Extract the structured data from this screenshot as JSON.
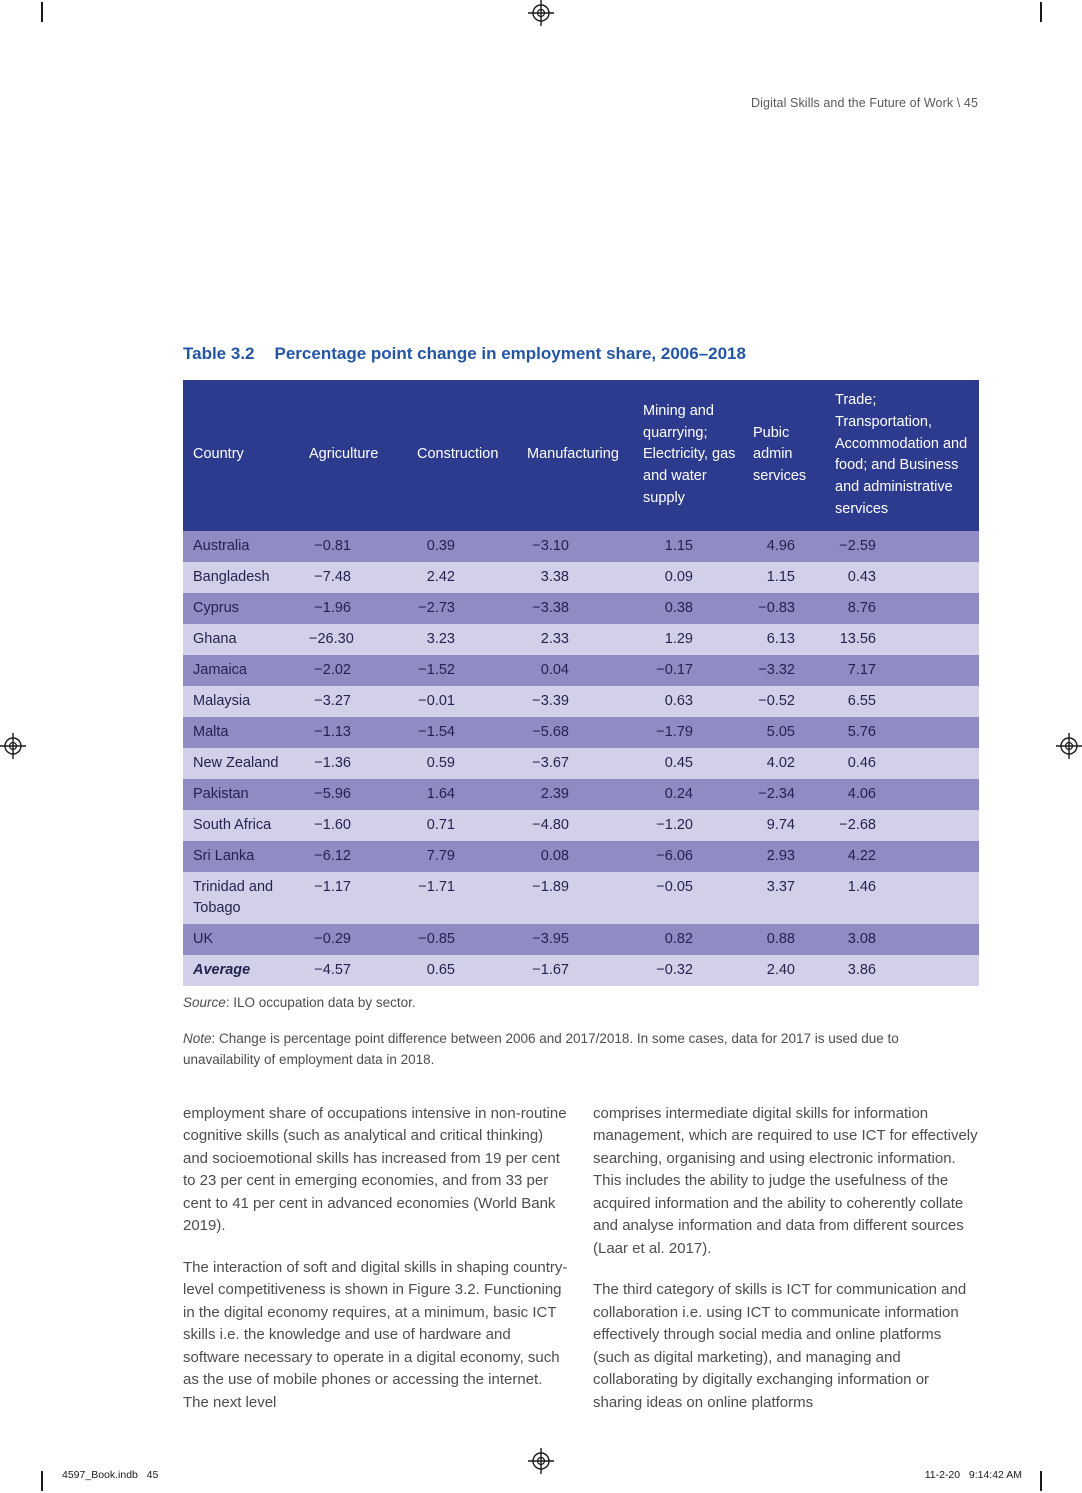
{
  "page": {
    "running_header": "Digital Skills and the Future of Work \\ 45",
    "footer_left": "4597_Book.indb   45",
    "footer_right": "11-2-20   9:14:42 AM"
  },
  "colors": {
    "title_blue": "#2456a4",
    "header_row_bg": "#2d3b8e",
    "row_dark": "#918bc4",
    "row_light": "#d2d0e8",
    "table_text": "#23234f"
  },
  "table": {
    "label": "Table 3.2",
    "title": "Percentage point change in employment share, 2006–2018",
    "columns": [
      "Country",
      "Agriculture",
      "Construction",
      "Manufacturing",
      "Mining and quarrying; Electricity, gas and water supply",
      "Pubic admin services",
      "Trade; Transportation, Accommodation and food; and Business and administrative services"
    ],
    "rows": [
      {
        "country": "Australia",
        "values": [
          "−0.81",
          "0.39",
          "−3.10",
          "1.15",
          "4.96",
          "−2.59"
        ]
      },
      {
        "country": "Bangladesh",
        "values": [
          "−7.48",
          "2.42",
          "3.38",
          "0.09",
          "1.15",
          "0.43"
        ]
      },
      {
        "country": "Cyprus",
        "values": [
          "−1.96",
          "−2.73",
          "−3.38",
          "0.38",
          "−0.83",
          "8.76"
        ]
      },
      {
        "country": "Ghana",
        "values": [
          "−26.30",
          "3.23",
          "2.33",
          "1.29",
          "6.13",
          "13.56"
        ]
      },
      {
        "country": "Jamaica",
        "values": [
          "−2.02",
          "−1.52",
          "0.04",
          "−0.17",
          "−3.32",
          "7.17"
        ]
      },
      {
        "country": "Malaysia",
        "values": [
          "−3.27",
          "−0.01",
          "−3.39",
          "0.63",
          "−0.52",
          "6.55"
        ]
      },
      {
        "country": "Malta",
        "values": [
          "−1.13",
          "−1.54",
          "−5.68",
          "−1.79",
          "5.05",
          "5.76"
        ]
      },
      {
        "country": "New Zealand",
        "values": [
          "−1.36",
          "0.59",
          "−3.67",
          "0.45",
          "4.02",
          "0.46"
        ]
      },
      {
        "country": "Pakistan",
        "values": [
          "−5.96",
          "1.64",
          "2.39",
          "0.24",
          "−2.34",
          "4.06"
        ]
      },
      {
        "country": "South Africa",
        "values": [
          "−1.60",
          "0.71",
          "−4.80",
          "−1.20",
          "9.74",
          "−2.68"
        ]
      },
      {
        "country": "Sri Lanka",
        "values": [
          "−6.12",
          "7.79",
          "0.08",
          "−6.06",
          "2.93",
          "4.22"
        ]
      },
      {
        "country": "Trinidad and Tobago",
        "values": [
          "−1.17",
          "−1.71",
          "−1.89",
          "−0.05",
          "3.37",
          "1.46"
        ]
      },
      {
        "country": "UK",
        "values": [
          "−0.29",
          "−0.85",
          "−3.95",
          "0.82",
          "0.88",
          "3.08"
        ]
      },
      {
        "country": "Average",
        "values": [
          "−4.57",
          "0.65",
          "−1.67",
          "−0.32",
          "2.40",
          "3.86"
        ],
        "emphasis": true
      }
    ],
    "source_label": "Source",
    "source_rest": ": ILO occupation data by sector.",
    "note_label": "Note",
    "note_rest": ": Change is percentage point difference between 2006 and 2017/2018. In some cases, data for 2017 is used due to unavailability of employment data in 2018."
  },
  "body": {
    "left": [
      "employment share of occupations intensive in non-routine cognitive skills (such as analytical and critical thinking) and socioemotional skills has increased from 19 per cent to 23 per cent in emerging economies, and from 33 per cent to 41 per cent in advanced economies (World Bank 2019).",
      "The interaction of soft and digital skills in shaping country-level competitiveness is shown in Figure 3.2. Functioning in the digital economy requires, at a minimum, basic ICT skills i.e. the knowledge and use of hardware and software necessary to operate in a digital economy, such as the use of mobile phones or accessing the internet. The next level"
    ],
    "right": [
      "comprises intermediate digital skills for information management, which are required to use ICT for effectively searching, organising and using electronic information. This includes the ability to judge the usefulness of the acquired information and the ability to coherently collate and analyse information and data from different sources (Laar et al. 2017).",
      "The third category of skills is ICT for communication and collaboration i.e. using ICT to communicate information effectively through social media and online platforms (such as digital marketing), and managing and collaborating by digitally exchanging information or sharing ideas on online platforms"
    ]
  }
}
